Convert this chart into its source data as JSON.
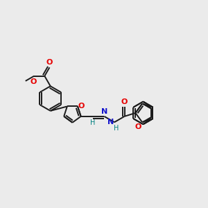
{
  "bg_color": "#ebebeb",
  "bond_color": "#1a1a1a",
  "bond_lw": 1.4,
  "dbl_sep": 2.8,
  "atom_colors": {
    "O": "#e60000",
    "N": "#1414cc",
    "H_teal": "#008080",
    "C": "#1a1a1a"
  },
  "fig_w": 3.0,
  "fig_h": 3.0,
  "dpi": 100
}
